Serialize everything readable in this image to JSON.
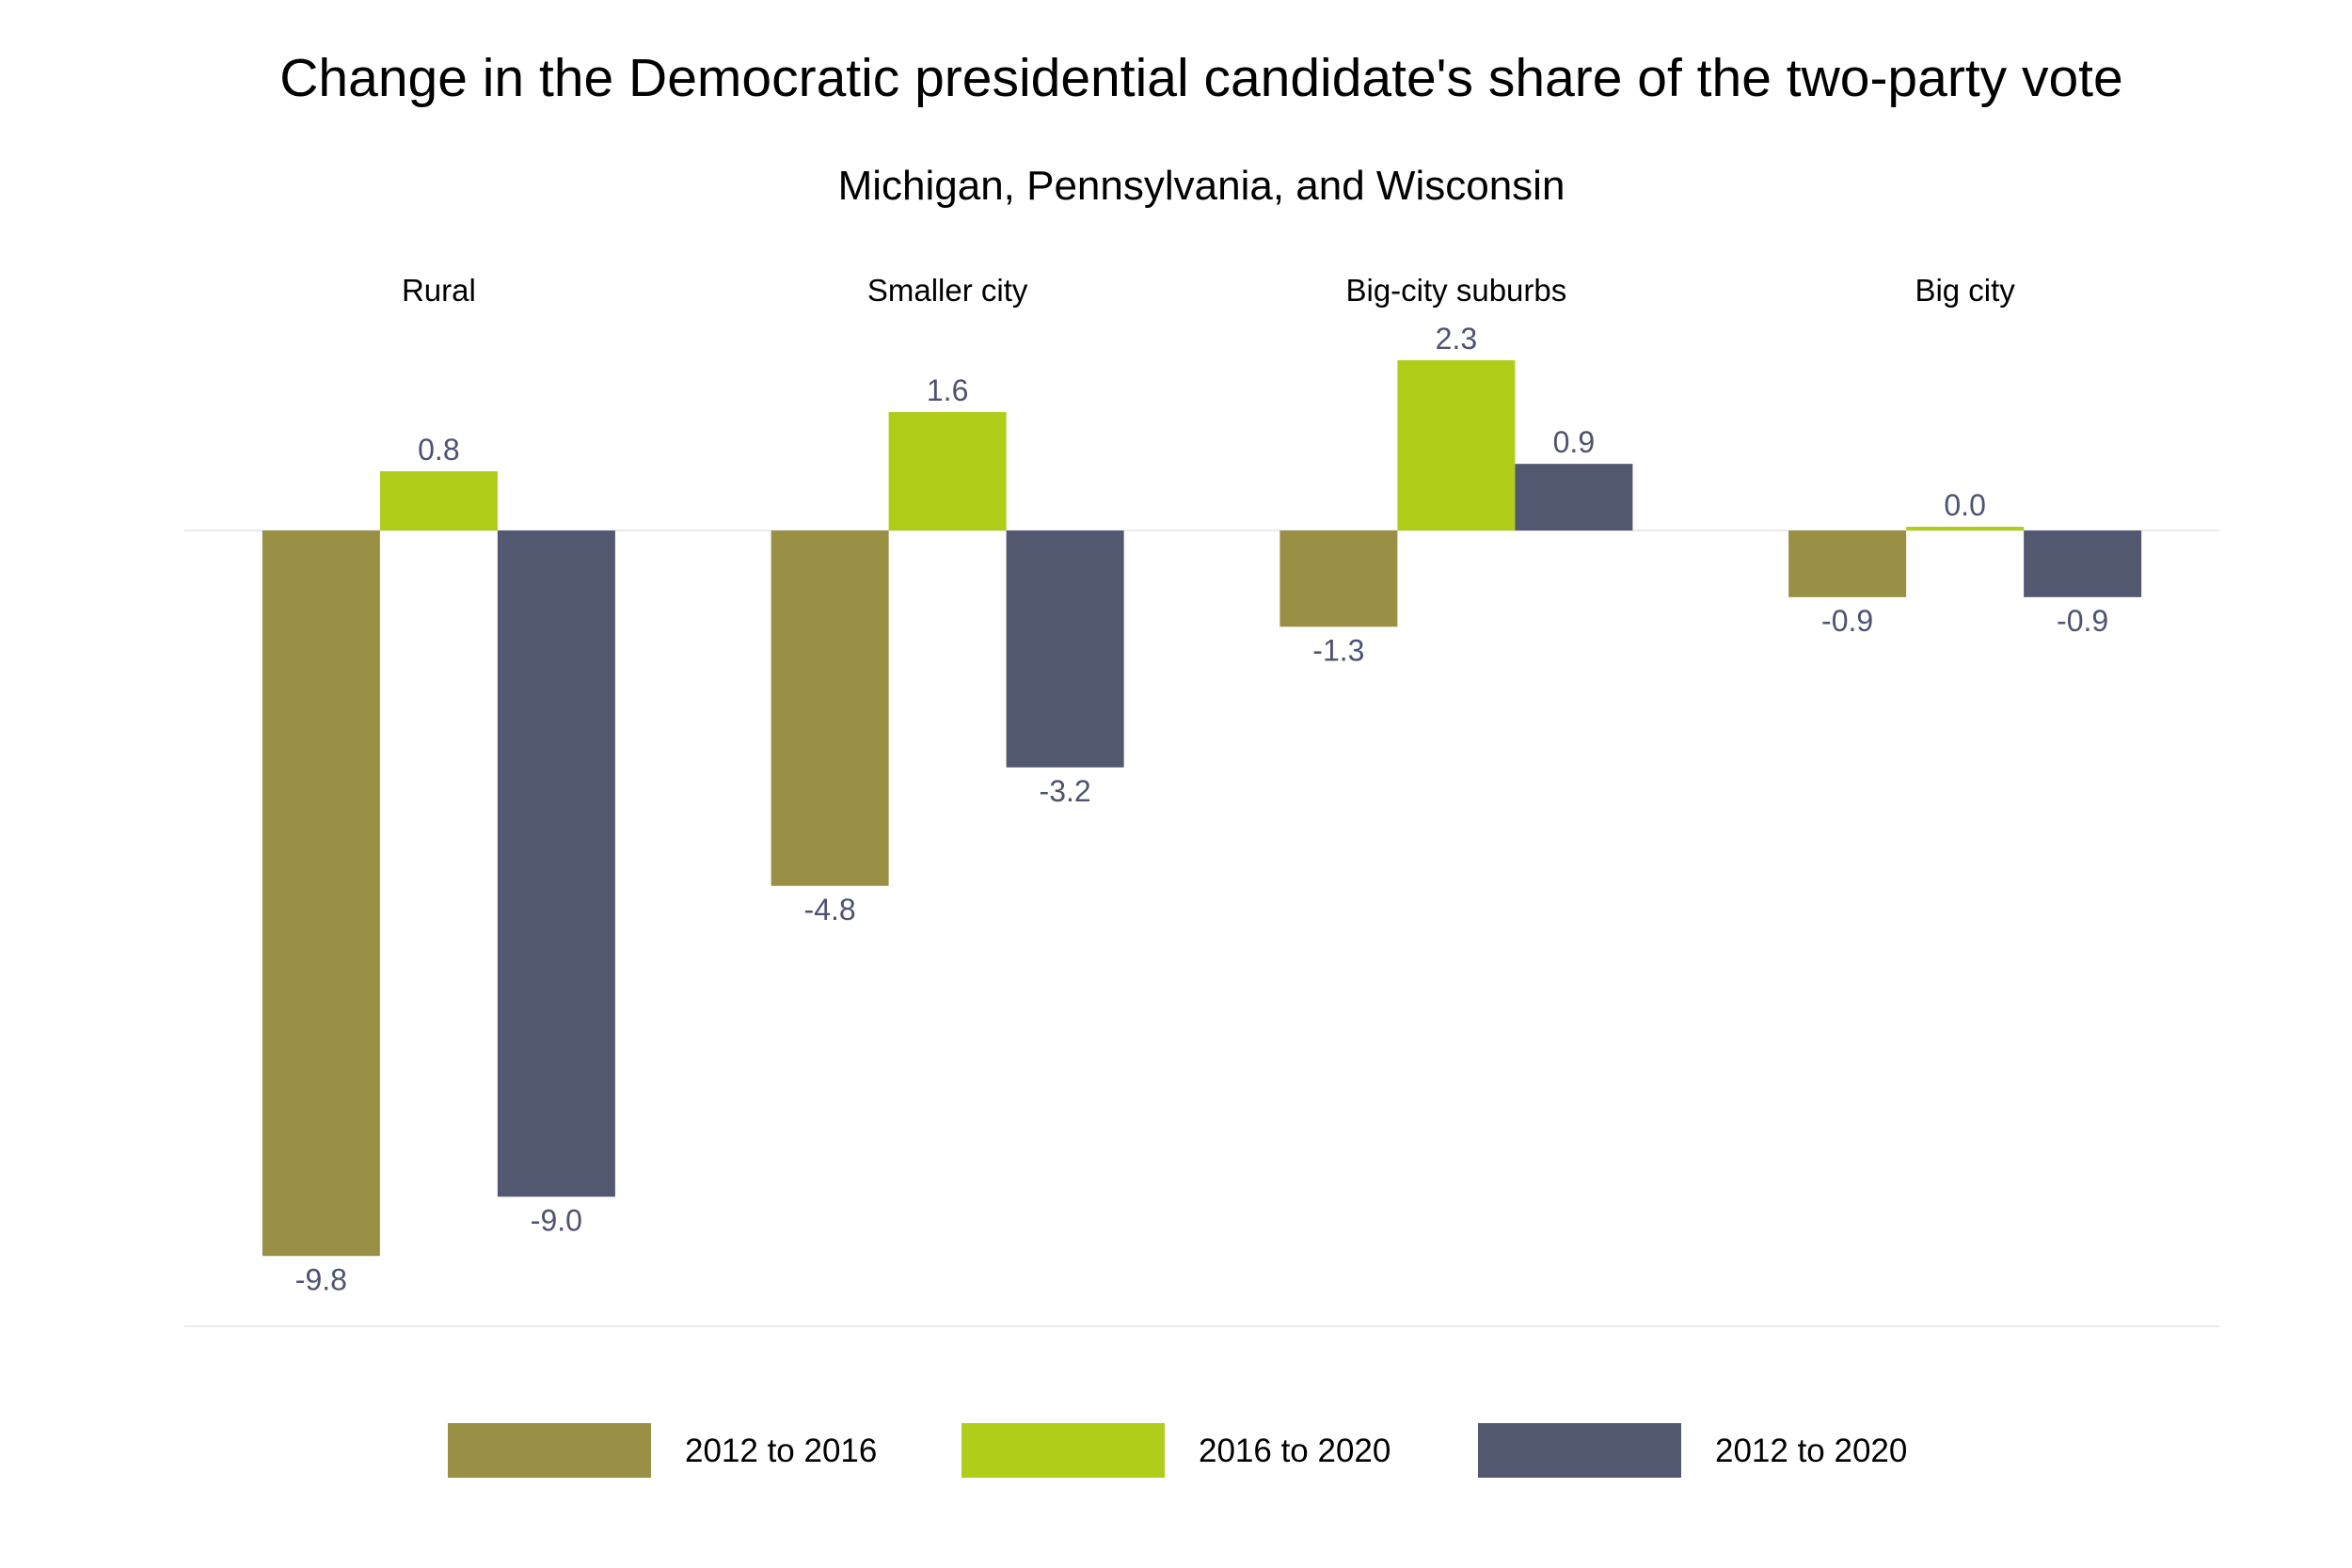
{
  "chart_data": {
    "type": "bar",
    "title": "Change in the Democratic presidential candidate's share of the two-party vote",
    "subtitle": "Michigan, Pennsylvania, and Wisconsin",
    "categories": [
      "Rural",
      "Smaller city",
      "Big-city suburbs",
      "Big city"
    ],
    "series": [
      {
        "name": "2012 to 2016",
        "color": "#998f45",
        "values": [
          -9.8,
          -4.8,
          -1.3,
          -0.9
        ],
        "labels": [
          "-9.8",
          "-4.8",
          "-1.3",
          "-0.9"
        ]
      },
      {
        "name": "2016 to 2020",
        "color": "#afcd19",
        "values": [
          0.8,
          1.6,
          2.3,
          0.0
        ],
        "labels": [
          "0.8",
          "1.6",
          "2.3",
          "0.0"
        ]
      },
      {
        "name": "2012 to 2020",
        "color": "#525870",
        "values": [
          -9.0,
          -3.2,
          0.9,
          -0.9
        ],
        "labels": [
          "-9.0",
          "-3.2",
          "0.9",
          "-0.9"
        ]
      }
    ],
    "ylim": [
      -10.75,
      2.5
    ],
    "grid": false,
    "legend_position": "bottom",
    "label_color": "#4d5370"
  }
}
